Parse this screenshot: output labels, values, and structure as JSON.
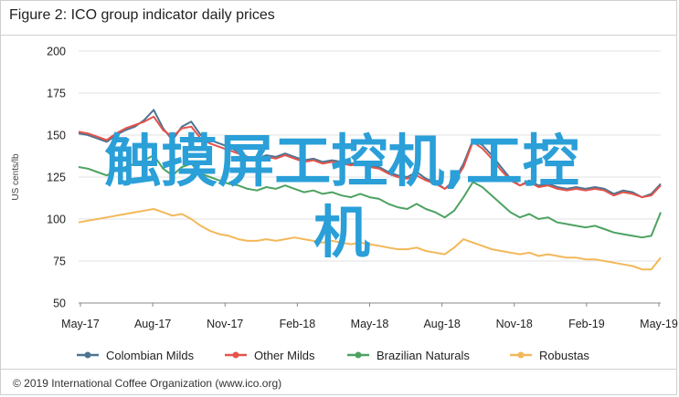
{
  "chart_data": {
    "type": "line",
    "title": "Figure 2: ICO group indicator daily prices",
    "ylabel": "US cents/lb",
    "ylim": [
      50,
      200
    ],
    "yticks": [
      50,
      75,
      100,
      125,
      150,
      175,
      200
    ],
    "xticks": [
      "May-17",
      "Aug-17",
      "Nov-17",
      "Feb-18",
      "May-18",
      "Aug-18",
      "Nov-18",
      "Feb-19",
      "May-19"
    ],
    "grid": true,
    "legend": "bottom",
    "series": [
      {
        "name": "Colombian Milds",
        "color": "#4d7491",
        "values": [
          151,
          150,
          148,
          146,
          150,
          153,
          155,
          159,
          165,
          154,
          147,
          155,
          158,
          150,
          147,
          145,
          143,
          140,
          137,
          136,
          138,
          137,
          139,
          137,
          135,
          136,
          134,
          135,
          134,
          133,
          134,
          132,
          131,
          128,
          126,
          125,
          128,
          124,
          122,
          118,
          123,
          133,
          147,
          144,
          138,
          131,
          124,
          120,
          123,
          120,
          121,
          119,
          118,
          119,
          118,
          119,
          118,
          115,
          117,
          116,
          113,
          115,
          121
        ]
      },
      {
        "name": "Other Milds",
        "color": "#e5534b",
        "values": [
          152,
          151,
          149,
          147,
          151,
          154,
          156,
          158,
          161,
          153,
          149,
          154,
          155,
          148,
          145,
          143,
          141,
          139,
          137,
          135,
          137,
          136,
          138,
          136,
          134,
          135,
          133,
          134,
          133,
          132,
          133,
          131,
          130,
          127,
          125,
          124,
          126,
          123,
          121,
          118,
          122,
          131,
          146,
          142,
          136,
          129,
          123,
          120,
          122,
          119,
          120,
          118,
          117,
          118,
          117,
          118,
          117,
          114,
          116,
          115,
          113,
          114,
          120
        ]
      },
      {
        "name": "Brazilian Naturals",
        "color": "#4da262",
        "values": [
          131,
          130,
          128,
          126,
          129,
          131,
          133,
          135,
          138,
          130,
          126,
          131,
          133,
          127,
          125,
          123,
          121,
          120,
          118,
          117,
          119,
          118,
          120,
          118,
          116,
          117,
          115,
          116,
          114,
          113,
          115,
          113,
          112,
          109,
          107,
          106,
          109,
          106,
          104,
          101,
          105,
          113,
          122,
          119,
          114,
          109,
          104,
          101,
          103,
          100,
          101,
          98,
          97,
          96,
          95,
          96,
          94,
          92,
          91,
          90,
          89,
          90,
          104
        ]
      },
      {
        "name": "Robustas",
        "color": "#f3b859",
        "values": [
          98,
          99,
          100,
          101,
          102,
          103,
          104,
          105,
          106,
          104,
          102,
          103,
          100,
          96,
          93,
          91,
          90,
          88,
          87,
          87,
          88,
          87,
          88,
          89,
          88,
          87,
          86,
          87,
          86,
          85,
          86,
          85,
          84,
          83,
          82,
          82,
          83,
          81,
          80,
          79,
          83,
          88,
          86,
          84,
          82,
          81,
          80,
          79,
          80,
          78,
          79,
          78,
          77,
          77,
          76,
          76,
          75,
          74,
          73,
          72,
          70,
          70,
          77
        ]
      }
    ]
  },
  "footer": "© 2019 International Coffee Organization (www.ico.org)",
  "overlay": {
    "line1": "触摸屏工控机,工控",
    "line2": "机"
  }
}
